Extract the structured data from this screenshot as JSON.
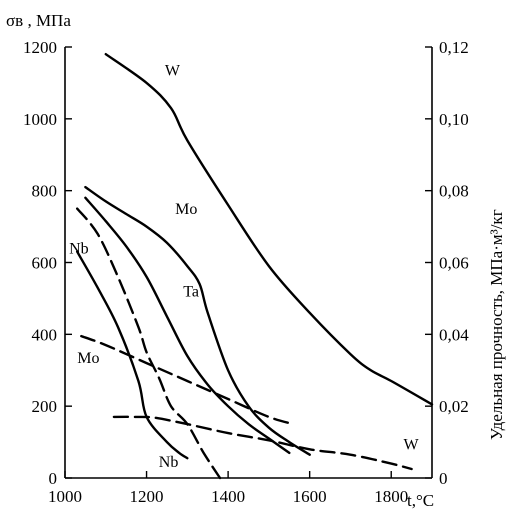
{
  "chart_data": {
    "type": "line",
    "title": "",
    "xlabel": "t,°C",
    "ylabel_left": "σв , МПа",
    "ylabel_right": "Удельная прочность, МПа·м³/кг",
    "xlim": [
      1000,
      1900
    ],
    "ylim_left": [
      0,
      1200
    ],
    "ylim_right": [
      0,
      0.12
    ],
    "x_ticks": [
      "1000",
      "1200",
      "1400",
      "1600",
      "1800"
    ],
    "x_tick_values": [
      1000,
      1200,
      1400,
      1600,
      1800
    ],
    "y_left_ticks": [
      "0",
      "200",
      "400",
      "600",
      "800",
      "1000",
      "1200"
    ],
    "y_left_tick_values": [
      0,
      200,
      400,
      600,
      800,
      1000,
      1200
    ],
    "y_right_ticks": [
      "0",
      "0,02",
      "0,04",
      "0,06",
      "0,08",
      "0,10",
      "0,12"
    ],
    "y_right_tick_values": [
      0,
      0.02,
      0.04,
      0.06,
      0.08,
      0.1,
      0.12
    ],
    "grid": false,
    "series": [
      {
        "name": "W",
        "style": "solid",
        "x": [
          1100,
          1200,
          1260,
          1300,
          1400,
          1500,
          1600,
          1700,
          1750,
          1800,
          1900
        ],
        "y": [
          1180,
          1100,
          1030,
          940,
          760,
          590,
          460,
          345,
          300,
          270,
          205
        ]
      },
      {
        "name": "Mo",
        "style": "solid",
        "x": [
          1050,
          1100,
          1150,
          1200,
          1250,
          1300,
          1330,
          1350,
          1400,
          1450,
          1500,
          1550,
          1600
        ],
        "y": [
          810,
          770,
          735,
          700,
          655,
          590,
          540,
          460,
          300,
          200,
          140,
          100,
          65
        ]
      },
      {
        "name": "Ta",
        "style": "solid",
        "x": [
          1050,
          1100,
          1150,
          1200,
          1250,
          1300,
          1350,
          1400,
          1450,
          1500,
          1550
        ],
        "y": [
          780,
          715,
          645,
          560,
          450,
          340,
          260,
          200,
          150,
          110,
          70
        ]
      },
      {
        "name": "Nb",
        "style": "solid",
        "x": [
          1030,
          1080,
          1130,
          1180,
          1200,
          1250,
          1280,
          1300
        ],
        "y": [
          630,
          530,
          420,
          270,
          170,
          100,
          70,
          55
        ]
      },
      {
        "name": "Nb",
        "style": "dashed",
        "x": [
          1030,
          1080,
          1130,
          1180,
          1200,
          1230,
          1260,
          1300,
          1340,
          1380
        ],
        "y": [
          750,
          680,
          560,
          420,
          350,
          280,
          200,
          150,
          70,
          0
        ]
      },
      {
        "name": "Mo",
        "style": "dashed",
        "x": [
          1040,
          1100,
          1200,
          1300,
          1400,
          1500,
          1560
        ],
        "y": [
          395,
          370,
          320,
          270,
          220,
          170,
          150
        ]
      },
      {
        "name": "W",
        "style": "dashed",
        "x": [
          1120,
          1170,
          1220,
          1300,
          1400,
          1500,
          1600,
          1700,
          1800,
          1850
        ],
        "y": [
          170,
          170,
          168,
          150,
          125,
          105,
          80,
          65,
          40,
          25
        ]
      }
    ],
    "annotations": [
      {
        "text": "W",
        "x": 1245,
        "y": 1120
      },
      {
        "text": "Mo",
        "x": 1270,
        "y": 735
      },
      {
        "text": "Ta",
        "x": 1290,
        "y": 505
      },
      {
        "text": "Nb",
        "x": 1010,
        "y": 625
      },
      {
        "text": "Mo",
        "x": 1030,
        "y": 320
      },
      {
        "text": "Nb",
        "x": 1230,
        "y": 30
      },
      {
        "text": "W",
        "x": 1830,
        "y": 80
      }
    ]
  }
}
